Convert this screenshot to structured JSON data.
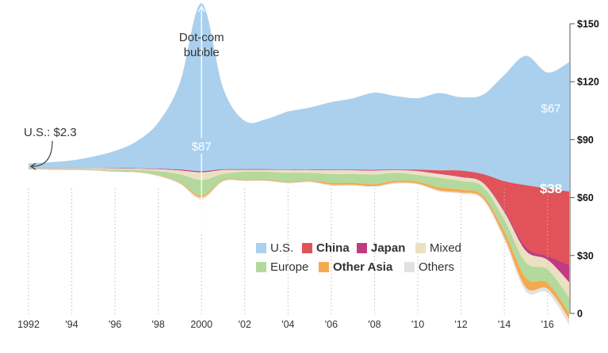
{
  "chart_data": {
    "type": "area",
    "layout": "streamgraph",
    "x": [
      1992,
      1993,
      1994,
      1995,
      1996,
      1997,
      1998,
      1999,
      2000,
      2001,
      2002,
      2003,
      2004,
      2005,
      2006,
      2007,
      2008,
      2009,
      2010,
      2011,
      2012,
      2013,
      2014,
      2015,
      2016,
      2017
    ],
    "x_tick_labels": [
      {
        "x": 1992,
        "label": "1992"
      },
      {
        "x": 1994,
        "label": "'94"
      },
      {
        "x": 1996,
        "label": "'96"
      },
      {
        "x": 1998,
        "label": "'98"
      },
      {
        "x": 2000,
        "label": "2000"
      },
      {
        "x": 2002,
        "label": "'02"
      },
      {
        "x": 2004,
        "label": "'04"
      },
      {
        "x": 2006,
        "label": "'06"
      },
      {
        "x": 2008,
        "label": "'08"
      },
      {
        "x": 2010,
        "label": "'10"
      },
      {
        "x": 2012,
        "label": "'12"
      },
      {
        "x": 2014,
        "label": "'14"
      },
      {
        "x": 2016,
        "label": "'16"
      }
    ],
    "y_ticks": [
      {
        "value": 0,
        "label": "0"
      },
      {
        "value": 30,
        "label": "$30"
      },
      {
        "value": 60,
        "label": "$60"
      },
      {
        "value": 90,
        "label": "$90"
      },
      {
        "value": 120,
        "label": "$120"
      },
      {
        "value": 150,
        "label": "$150"
      }
    ],
    "ylim": [
      0,
      150
    ],
    "grid": false,
    "legend_placement": "bottom-center",
    "series": [
      {
        "name": "U.S.",
        "color": "#aad0ee",
        "bold": false,
        "values": [
          2.3,
          3,
          4,
          6,
          9,
          14,
          24,
          45,
          87,
          42,
          25,
          26,
          30,
          32,
          35,
          37,
          40,
          38,
          37,
          40,
          38,
          41,
          55,
          67,
          60,
          67
        ]
      },
      {
        "name": "China",
        "color": "#e15259",
        "bold": true,
        "values": [
          0,
          0,
          0,
          0,
          0,
          0,
          0,
          0,
          0,
          0,
          0,
          0,
          0,
          0,
          0,
          0,
          0,
          0,
          0.5,
          1.5,
          3,
          4,
          15,
          32,
          35,
          38
        ]
      },
      {
        "name": "Japan",
        "color": "#c13b80",
        "bold": true,
        "values": [
          0.1,
          0.1,
          0.1,
          0.1,
          0.2,
          0.2,
          0.3,
          0.5,
          0.6,
          0.4,
          0.3,
          0.3,
          0.3,
          0.3,
          0.3,
          0.3,
          0.4,
          0.3,
          0.3,
          0.4,
          0.4,
          0.5,
          1,
          2,
          2,
          9
        ]
      },
      {
        "name": "Mixed",
        "color": "#ece0c3",
        "bold": false,
        "values": [
          0.2,
          0.3,
          0.3,
          0.4,
          0.5,
          0.6,
          1,
          2,
          4,
          2,
          1,
          1,
          1.5,
          1.5,
          2,
          2,
          2,
          1.5,
          2,
          2,
          2,
          2,
          4,
          6,
          5,
          8
        ]
      },
      {
        "name": "Europe",
        "color": "#b3d99c",
        "bold": false,
        "values": [
          0.3,
          0.4,
          0.5,
          0.6,
          0.8,
          1,
          2,
          4,
          8,
          3,
          4,
          4,
          4.5,
          4,
          4.5,
          4.5,
          5,
          4,
          3.5,
          5,
          4.5,
          4.5,
          6,
          8,
          7,
          8
        ]
      },
      {
        "name": "Other Asia",
        "color": "#f5a94e",
        "bold": true,
        "values": [
          0.1,
          0.1,
          0.1,
          0.1,
          0.2,
          0.2,
          0.3,
          0.5,
          1,
          0.5,
          0.5,
          0.5,
          0.5,
          0.5,
          1,
          1,
          1,
          1,
          1,
          1.5,
          1.5,
          1.5,
          3,
          5,
          3,
          3
        ]
      },
      {
        "name": "Others",
        "color": "#e2e2e2",
        "bold": false,
        "values": [
          0.1,
          0.1,
          0.1,
          0.1,
          0.2,
          0.2,
          0.3,
          0.5,
          1,
          0.5,
          0.4,
          0.4,
          0.4,
          0.4,
          0.5,
          0.5,
          0.5,
          0.5,
          0.5,
          0.6,
          0.6,
          0.7,
          1.5,
          2,
          2,
          3
        ]
      }
    ],
    "annotations": [
      {
        "id": "dotcom",
        "lines": [
          "Dot-com",
          "bubble"
        ],
        "x": 2000
      },
      {
        "id": "us-start",
        "text": "U.S.: $2.3",
        "x": 1992
      },
      {
        "id": "us-2000",
        "text": "$87",
        "x": 2000,
        "series": "U.S."
      },
      {
        "id": "us-2017",
        "text": "$67",
        "x": 2017,
        "series": "U.S."
      },
      {
        "id": "china-2017",
        "text": "$38",
        "x": 2017,
        "series": "China"
      }
    ]
  }
}
